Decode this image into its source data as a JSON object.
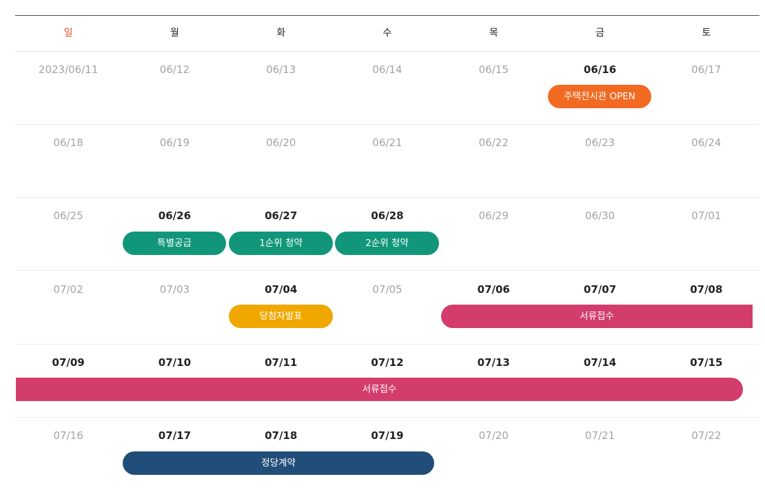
{
  "weekdays": [
    "일",
    "월",
    "화",
    "수",
    "목",
    "금",
    "토"
  ],
  "weeks": [
    {
      "days": [
        {
          "label": "2023/06/11",
          "active": false
        },
        {
          "label": "06/12",
          "active": false
        },
        {
          "label": "06/13",
          "active": false
        },
        {
          "label": "06/14",
          "active": false
        },
        {
          "label": "06/15",
          "active": false
        },
        {
          "label": "06/16",
          "active": true
        },
        {
          "label": "06/17",
          "active": false
        }
      ]
    },
    {
      "days": [
        {
          "label": "06/18",
          "active": false
        },
        {
          "label": "06/19",
          "active": false
        },
        {
          "label": "06/20",
          "active": false
        },
        {
          "label": "06/21",
          "active": false
        },
        {
          "label": "06/22",
          "active": false
        },
        {
          "label": "06/23",
          "active": false
        },
        {
          "label": "06/24",
          "active": false
        }
      ]
    },
    {
      "days": [
        {
          "label": "06/25",
          "active": false
        },
        {
          "label": "06/26",
          "active": true
        },
        {
          "label": "06/27",
          "active": true
        },
        {
          "label": "06/28",
          "active": true
        },
        {
          "label": "06/29",
          "active": false
        },
        {
          "label": "06/30",
          "active": false
        },
        {
          "label": "07/01",
          "active": false
        }
      ]
    },
    {
      "days": [
        {
          "label": "07/02",
          "active": false
        },
        {
          "label": "07/03",
          "active": false
        },
        {
          "label": "07/04",
          "active": true
        },
        {
          "label": "07/05",
          "active": false
        },
        {
          "label": "07/06",
          "active": true
        },
        {
          "label": "07/07",
          "active": true
        },
        {
          "label": "07/08",
          "active": true
        }
      ]
    },
    {
      "days": [
        {
          "label": "07/09",
          "active": true
        },
        {
          "label": "07/10",
          "active": true
        },
        {
          "label": "07/11",
          "active": true
        },
        {
          "label": "07/12",
          "active": true
        },
        {
          "label": "07/13",
          "active": true
        },
        {
          "label": "07/14",
          "active": true
        },
        {
          "label": "07/15",
          "active": true
        }
      ]
    },
    {
      "days": [
        {
          "label": "07/16",
          "active": false
        },
        {
          "label": "07/17",
          "active": true
        },
        {
          "label": "07/18",
          "active": true
        },
        {
          "label": "07/19",
          "active": true
        },
        {
          "label": "07/20",
          "active": false
        },
        {
          "label": "07/21",
          "active": false
        },
        {
          "label": "07/22",
          "active": false
        }
      ]
    }
  ],
  "events": [
    {
      "label": "주택전시관 OPEN",
      "color": "#f26a22"
    },
    {
      "label": "특별공급",
      "color": "#11967a"
    },
    {
      "label": "1순위 청약",
      "color": "#11967a"
    },
    {
      "label": "2순위 청약",
      "color": "#11967a"
    },
    {
      "label": "당첨자발표",
      "color": "#f0a800"
    },
    {
      "label": "서류접수",
      "color": "#d23d6b"
    },
    {
      "label": "서류접수",
      "color": "#d23d6b"
    },
    {
      "label": "정당계약",
      "color": "#214e78"
    }
  ]
}
